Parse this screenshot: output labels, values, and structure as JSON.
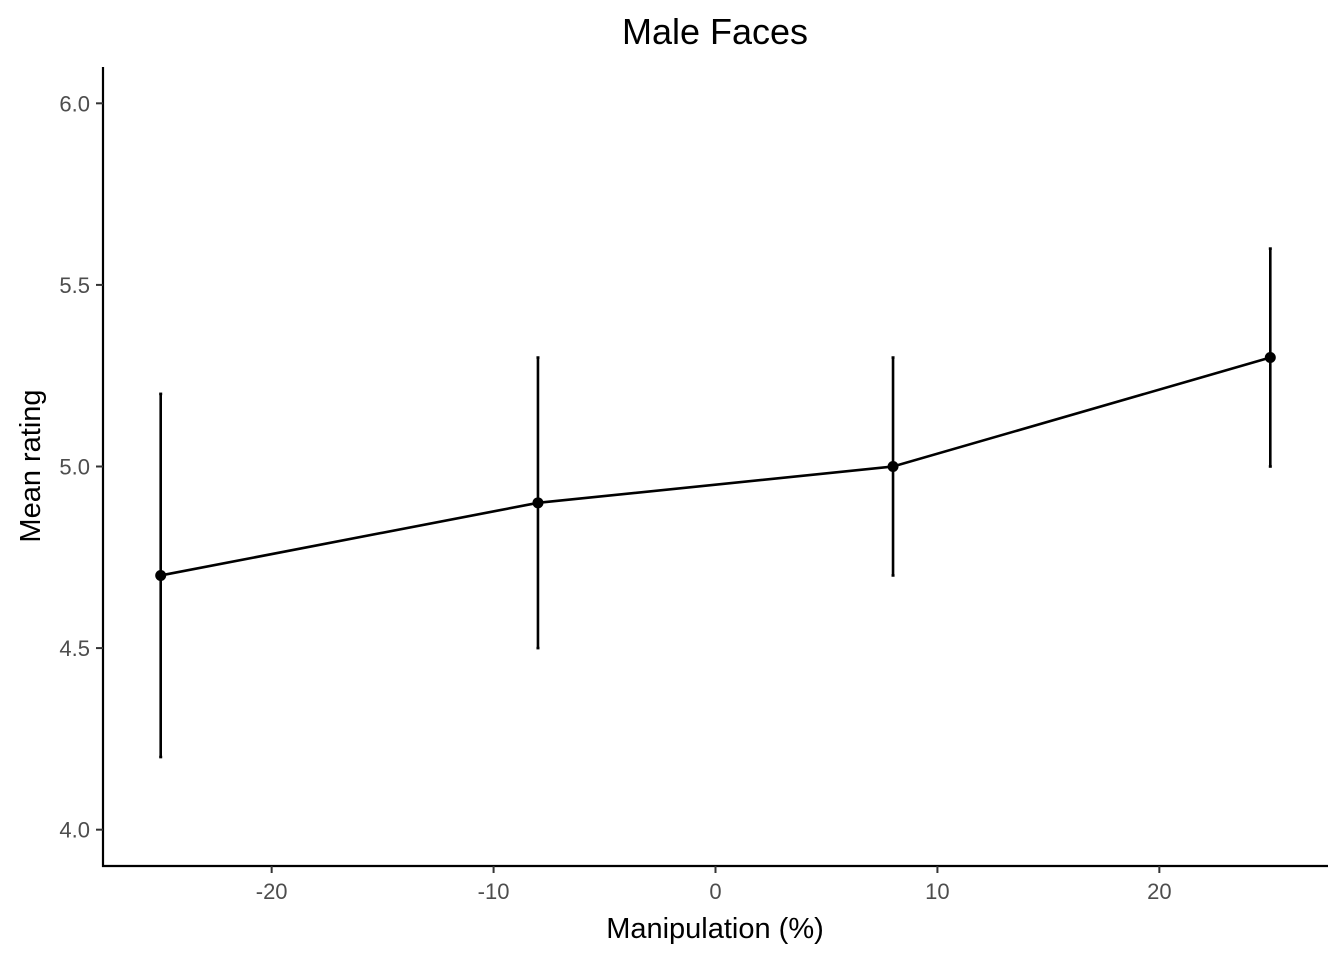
{
  "chart_data": {
    "type": "line",
    "title": "Male Faces",
    "xlabel": "Manipulation (%)",
    "ylabel": "Mean rating",
    "xlim": [
      -27.6,
      27.6
    ],
    "ylim": [
      3.9,
      6.1
    ],
    "x_ticks": [
      -20,
      -10,
      0,
      10,
      20
    ],
    "x_tick_labels": [
      "-20",
      "-10",
      "0",
      "10",
      "20"
    ],
    "y_ticks": [
      4.0,
      4.5,
      5.0,
      5.5,
      6.0
    ],
    "y_tick_labels": [
      "4.0",
      "4.5",
      "5.0",
      "5.5",
      "6.0"
    ],
    "grid": false,
    "series": [
      {
        "x": [
          -25,
          -8,
          8,
          25
        ],
        "y": [
          4.7,
          4.9,
          5.0,
          5.3
        ],
        "ymin": [
          4.2,
          4.5,
          4.7,
          5.0
        ],
        "ymax": [
          5.2,
          5.3,
          5.3,
          5.6
        ],
        "color": "#000000"
      }
    ]
  }
}
